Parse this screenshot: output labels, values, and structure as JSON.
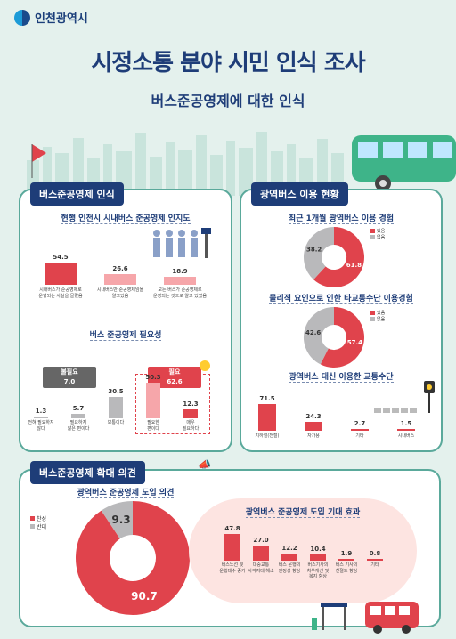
{
  "header": {
    "logo_text": "인천광역시",
    "title_part1": "시정소통 분야 ",
    "title_part2": "시민 인식 조사",
    "subtitle": "버스준공영제에 대한 인식"
  },
  "section1": {
    "heading": "버스준공영제 인식",
    "awareness": {
      "title": "현행 인천시 시내버스 준공영제 인지도",
      "chart_data": {
        "type": "bar",
        "title": "현행 인천시 시내버스 준공영제 인지도",
        "categories": [
          "시내버스가 준공영제로 운영되는 사실을 몰랐음",
          "시내버스만 준공영제임을 알고있음",
          "모든 버스가 준공영제로 운영되는 것으로 알고 있었음"
        ],
        "values": [
          54.5,
          26.6,
          18.9
        ]
      },
      "labels": [
        [
          "시내버스가 준공영제로",
          "운영되는 사실을 몰랐음"
        ],
        [
          "시내버스만 준공영제임을",
          "알고있음"
        ],
        [
          "모든 버스가 준공영제로",
          "운영되는 것으로 알고 있었음"
        ]
      ],
      "value_texts": [
        "54.5",
        "26.6",
        "18.9"
      ]
    },
    "necessity": {
      "title": "버스 준공영제 필요성",
      "group_unneeded_label": "불필요",
      "group_unneeded_value": "7.0",
      "group_needed_label": "필요",
      "group_needed_value": "62.6",
      "chart_data": {
        "type": "bar",
        "title": "버스 준공영제 필요성",
        "categories": [
          "전혀 필요하지 않다",
          "필요하지 않은 편이다",
          "보통이다",
          "필요한 편이다",
          "매우 필요하다"
        ],
        "values": [
          1.3,
          5.7,
          30.5,
          50.3,
          12.3
        ]
      },
      "value_texts": [
        "1.3",
        "5.7",
        "30.5",
        "50.3",
        "12.3"
      ],
      "labels": [
        [
          "전혀 필요하지",
          "않다"
        ],
        [
          "필요하지",
          "않은 편이다"
        ],
        [
          "보통이다",
          ""
        ],
        [
          "필요한",
          "편이다"
        ],
        [
          "매우",
          "필요하다"
        ]
      ]
    }
  },
  "section2": {
    "heading": "광역버스 이용 현황",
    "experience": {
      "title": "최근 1개월 광역버스 이용 경험",
      "legend": [
        "있음",
        "없음"
      ],
      "chart_data": {
        "type": "pie",
        "title": "최근 1개월 광역버스 이용 경험",
        "categories": [
          "있음",
          "없음"
        ],
        "values": [
          61.8,
          38.2
        ]
      },
      "value_texts": [
        "61.8",
        "38.2"
      ]
    },
    "alternative": {
      "title": "물리적 요인으로 인한 타교통수단 이용경험",
      "legend": [
        "있음",
        "없음"
      ],
      "chart_data": {
        "type": "pie",
        "title": "물리적 요인으로 인한 타교통수단 이용경험",
        "categories": [
          "있음",
          "없음"
        ],
        "values": [
          57.4,
          42.6
        ]
      },
      "value_texts": [
        "57.4",
        "42.6"
      ]
    },
    "substitute": {
      "title": "광역버스 대신 이용한 교통수단",
      "chart_data": {
        "type": "bar",
        "title": "광역버스 대신 이용한 교통수단",
        "categories": [
          "지하철(전철)",
          "자가용",
          "기타",
          "시내버스"
        ],
        "values": [
          71.5,
          24.3,
          2.7,
          1.5
        ]
      },
      "value_texts": [
        "71.5",
        "24.3",
        "2.7",
        "1.5"
      ],
      "labels": [
        "지하철(전철)",
        "자가용",
        "기타",
        "시내버스"
      ]
    }
  },
  "section3": {
    "heading": "버스준공영제 확대 의견",
    "introduction": {
      "title": "광역버스 준공영제 도입 의견",
      "legend": [
        "찬성",
        "반대"
      ],
      "chart_data": {
        "type": "pie",
        "title": "광역버스 준공영제 도입 의견",
        "categories": [
          "찬성",
          "반대"
        ],
        "values": [
          90.7,
          9.3
        ]
      },
      "value_texts": [
        "90.7",
        "9.3"
      ]
    },
    "effects": {
      "title": "광역버스 준공영제 도입 기대 효과",
      "chart_data": {
        "type": "bar",
        "title": "광역버스 준공영제 도입 기대 효과",
        "categories": [
          "버스노선 및 운행대수 증가",
          "대중교통 사각지대 해소",
          "버스 운행의 안정성 향상",
          "버스기사의 처우개선 및 복지 향상",
          "버스 기사의 친절도 향상",
          "기타"
        ],
        "values": [
          47.8,
          27.0,
          12.2,
          10.4,
          1.9,
          0.8
        ]
      },
      "value_texts": [
        "47.8",
        "27.0",
        "12.2",
        "10.4",
        "1.9",
        "0.8"
      ],
      "labels": [
        [
          "버스노선 및",
          "운행대수 증가"
        ],
        [
          "대중교통",
          "사각지대 해소"
        ],
        [
          "버스 운행의",
          "안정성 향상"
        ],
        [
          "버스기사의",
          "처우개선 및",
          "복지 향상"
        ],
        [
          "버스 기사의",
          "친절도 향상"
        ],
        [
          "기타"
        ]
      ]
    }
  },
  "colors": {
    "navy": "#1e3d78",
    "red": "#e0434c",
    "pink": "#f6a6aa",
    "grey": "#b9b9bb",
    "teal": "#5aa99b",
    "bg": "#e4f1ed"
  }
}
